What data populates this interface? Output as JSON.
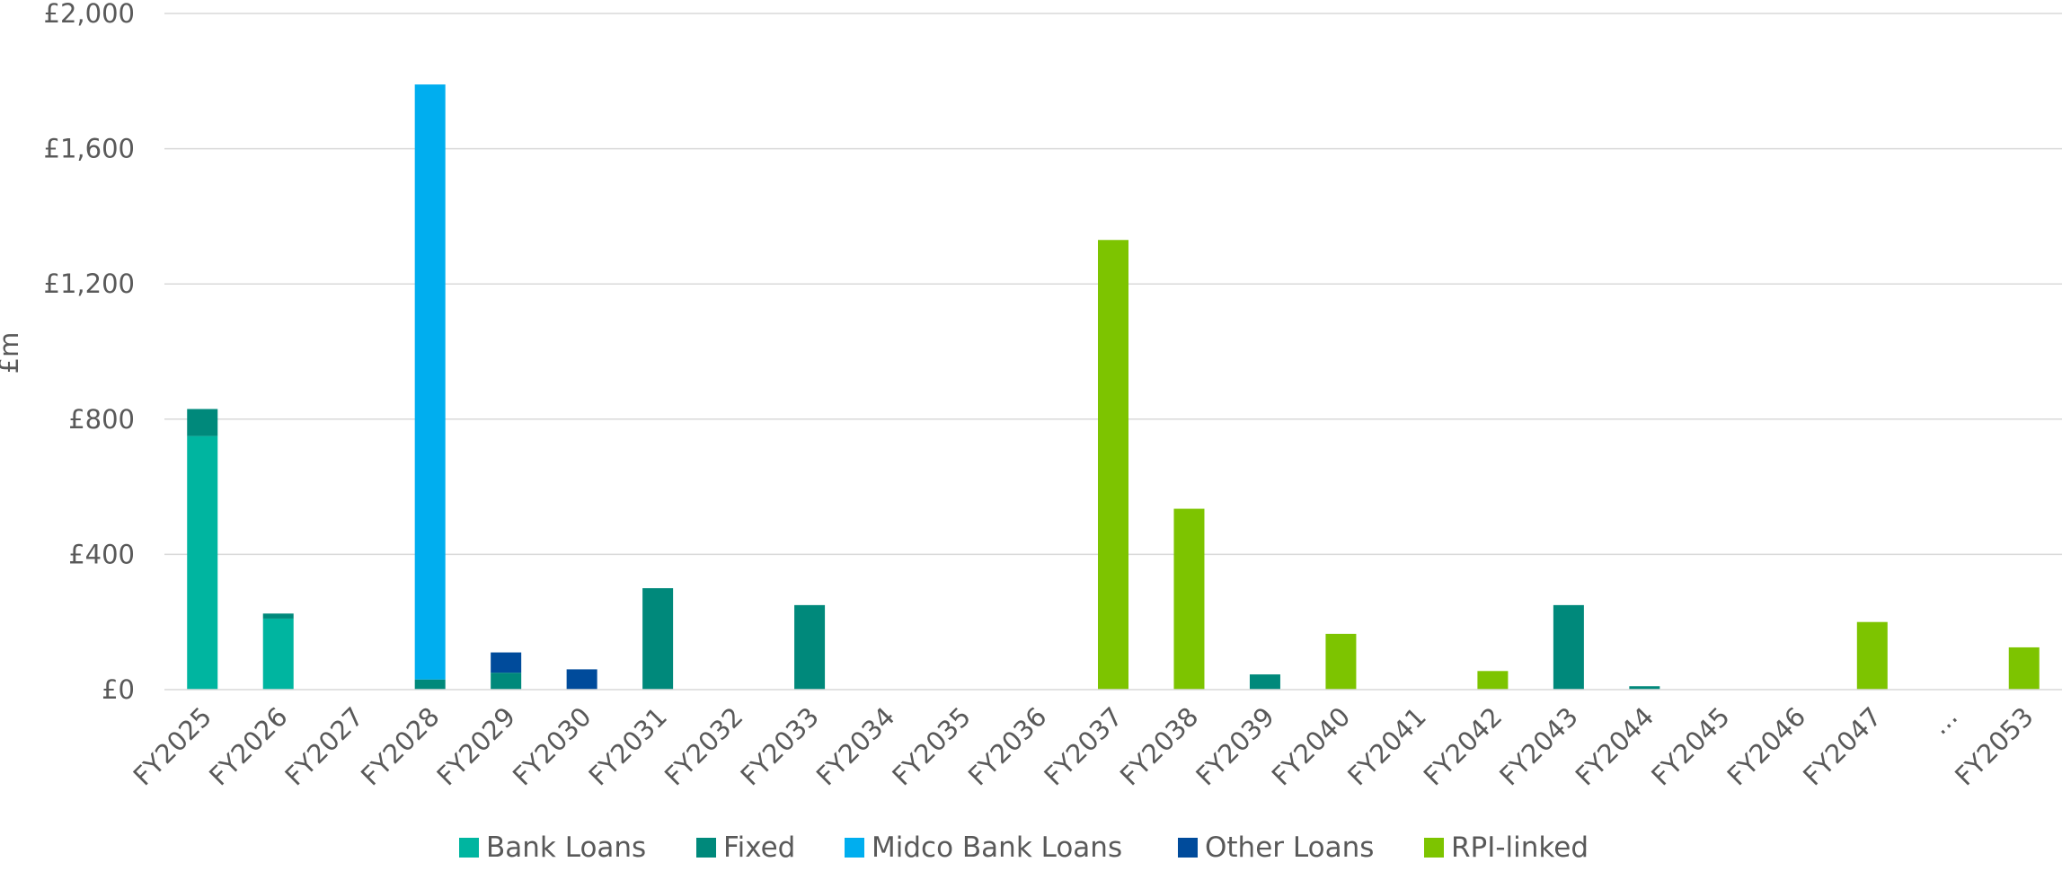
{
  "chart_data": {
    "type": "bar",
    "stacked": true,
    "title": "",
    "xlabel": "",
    "ylabel": "£m",
    "ylim": [
      0,
      2000
    ],
    "yticks": [
      "£0",
      "£400",
      "£800",
      "£1,200",
      "£1,600",
      "£2,000"
    ],
    "ytick_values": [
      0,
      400,
      800,
      1200,
      1600,
      2000
    ],
    "grid": true,
    "legend_position": "bottom",
    "categories": [
      "FY2025",
      "FY2026",
      "FY2027",
      "FY2028",
      "FY2029",
      "FY2030",
      "FY2031",
      "FY2032",
      "FY2033",
      "FY2034",
      "FY2035",
      "FY2036",
      "FY2037",
      "FY2038",
      "FY2039",
      "FY2040",
      "FY2041",
      "FY2042",
      "FY2043",
      "FY2044",
      "FY2045",
      "FY2046",
      "FY2047",
      "...",
      "FY2053"
    ],
    "series": [
      {
        "name": "Bank Loans",
        "color": "#00B5A0",
        "values": [
          750,
          210,
          0,
          0,
          0,
          0,
          0,
          0,
          0,
          0,
          0,
          0,
          0,
          0,
          0,
          0,
          0,
          0,
          0,
          0,
          0,
          0,
          0,
          0,
          0
        ]
      },
      {
        "name": "Fixed",
        "color": "#00897B",
        "values": [
          80,
          15,
          0,
          30,
          50,
          0,
          300,
          0,
          250,
          0,
          0,
          0,
          0,
          0,
          45,
          0,
          0,
          0,
          250,
          10,
          0,
          0,
          0,
          0,
          0
        ]
      },
      {
        "name": "Midco Bank Loans",
        "color": "#00AEEF",
        "values": [
          0,
          0,
          0,
          1760,
          0,
          0,
          0,
          0,
          0,
          0,
          0,
          0,
          0,
          0,
          0,
          0,
          0,
          0,
          0,
          0,
          0,
          0,
          0,
          0,
          0
        ]
      },
      {
        "name": "Other Loans",
        "color": "#004B9B",
        "values": [
          0,
          0,
          0,
          0,
          60,
          60,
          0,
          0,
          0,
          0,
          0,
          0,
          0,
          0,
          0,
          0,
          0,
          0,
          0,
          0,
          0,
          0,
          0,
          0,
          0
        ]
      },
      {
        "name": "RPI-linked",
        "color": "#7DC400",
        "values": [
          0,
          0,
          0,
          0,
          0,
          0,
          0,
          0,
          0,
          0,
          0,
          0,
          1330,
          535,
          0,
          165,
          0,
          55,
          0,
          0,
          0,
          0,
          200,
          0,
          125
        ]
      }
    ]
  }
}
